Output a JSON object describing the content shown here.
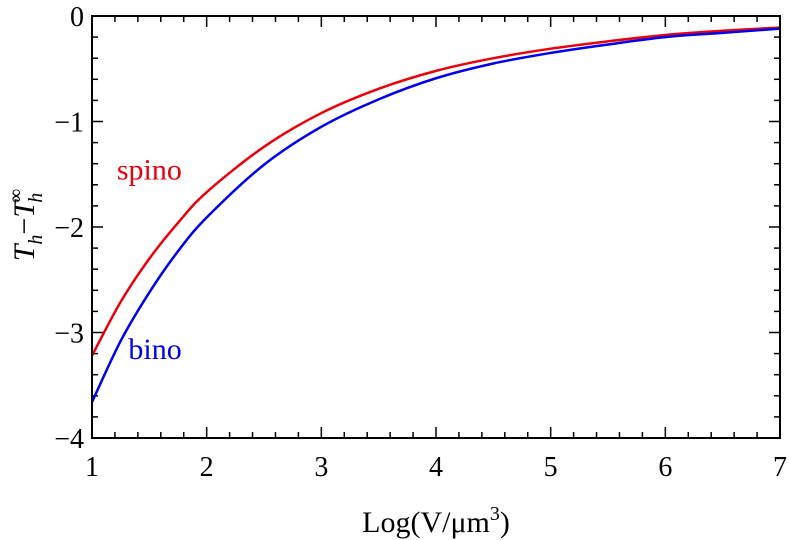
{
  "chart_data": {
    "type": "line",
    "title": "",
    "xlabel": "Log(V/μm³)",
    "ylabel": "T_h − T_h^∞",
    "xlim": [
      1,
      7
    ],
    "ylim": [
      -4,
      0
    ],
    "x_ticks": [
      1,
      2,
      3,
      4,
      5,
      6,
      7
    ],
    "y_ticks": [
      0,
      -1,
      -2,
      -3,
      -4
    ],
    "grid": false,
    "legend": "none",
    "series": [
      {
        "name": "spino",
        "color": "#e8000b",
        "x": [
          1.0,
          1.25,
          1.5,
          1.75,
          2.0,
          2.5,
          3.0,
          3.5,
          4.0,
          4.5,
          5.0,
          5.5,
          6.0,
          6.5,
          7.0
        ],
        "y": [
          -3.22,
          -2.71,
          -2.3,
          -1.96,
          -1.67,
          -1.24,
          -0.92,
          -0.69,
          -0.52,
          -0.4,
          -0.31,
          -0.24,
          -0.18,
          -0.14,
          -0.11
        ]
      },
      {
        "name": "bino",
        "color": "#0000ee",
        "x": [
          1.0,
          1.25,
          1.5,
          1.75,
          2.0,
          2.5,
          3.0,
          3.5,
          4.0,
          4.5,
          5.0,
          5.5,
          6.0,
          6.5,
          7.0
        ],
        "y": [
          -3.66,
          -3.08,
          -2.62,
          -2.23,
          -1.91,
          -1.41,
          -1.05,
          -0.79,
          -0.59,
          -0.45,
          -0.35,
          -0.27,
          -0.2,
          -0.16,
          -0.12
        ]
      }
    ],
    "annotations": [
      {
        "text": "spino",
        "x": 1.5,
        "y": -1.55,
        "color": "#e8000b"
      },
      {
        "text": "bino",
        "x": 1.55,
        "y": -3.25,
        "color": "#0000ee"
      }
    ]
  }
}
